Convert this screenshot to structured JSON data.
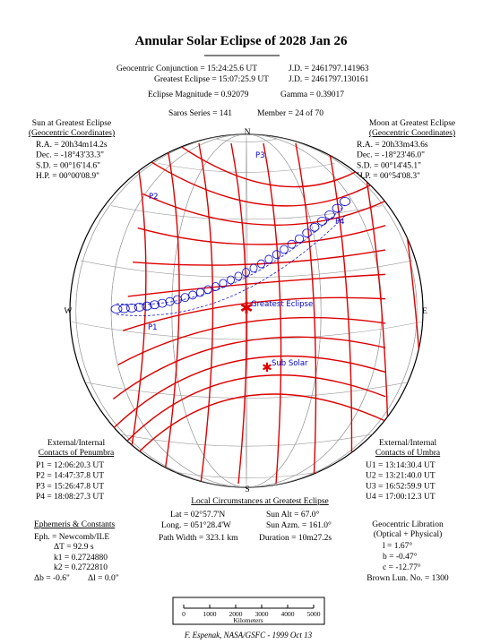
{
  "title": "Annular Solar Eclipse of 2028 Jan 26",
  "header": {
    "conjunction": "Geocentric Conjunction = 15:24:25.6 UT",
    "conjunction_jd": "J.D. = 2461797.141963",
    "greatest": "Greatest Eclipse = 15:07:25.9 UT",
    "greatest_jd": "J.D. = 2461797.130161",
    "magnitude": "Eclipse Magnitude = 0.92079",
    "gamma": "Gamma = 0.39017",
    "saros": "Saros Series = 141",
    "member": "Member = 24 of 70"
  },
  "sun": {
    "title": "Sun at Greatest Eclipse",
    "subtitle": "(Geocentric Coordinates)",
    "lines": [
      "R.A. = 20h34m14.2s",
      "Dec. = -18°43'33.3\"",
      "S.D. = 00°16'14.6\"",
      "H.P. = 00°00'08.9\""
    ]
  },
  "moon": {
    "title": "Moon at Greatest Eclipse",
    "subtitle": "(Geocentric Coordinates)",
    "lines": [
      "R.A. = 20h33m43.6s",
      "Dec. = -18°23'46.0\"",
      "S.D. = 00°14'45.1\"",
      "H.P. = 00°54'08.3\""
    ]
  },
  "map": {
    "north": "N",
    "south": "S",
    "east": "E",
    "west": "W",
    "p1": "P1",
    "p2": "P2",
    "p3": "P3",
    "p4": "P4",
    "greatest": "Greatest Eclipse",
    "sub_solar": "Sub Solar"
  },
  "penumbra": {
    "title": "External/Internal",
    "subtitle": "Contacts of Penumbra",
    "lines": [
      "P1 = 12:06:20.3 UT",
      "P2 = 14:47:37.8 UT",
      "P3 = 15:26:47.8 UT",
      "P4 = 18:08:27.3 UT"
    ]
  },
  "umbra": {
    "title": "External/Internal",
    "subtitle": "Contacts of Umbra",
    "lines": [
      "U1 = 13:14:30.4 UT",
      "U2 = 13:21:40.0 UT",
      "U3 = 16:52:59.9 UT",
      "U4 = 17:00:12.3 UT"
    ]
  },
  "local": {
    "title": "Local Circumstances at Greatest Eclipse",
    "lat": "Lat = 02°57.7'N",
    "sun_alt": "Sun Alt = 67.0°",
    "long": "Long. = 051°28.4'W",
    "sun_azm": "Sun Azm. = 161.0°",
    "path_width": "Path Width = 323.1 km",
    "duration": "Duration = 10m27.2s"
  },
  "ephemeris": {
    "title": "Ephemeris & Constants",
    "eph": "Eph. = Newcomb/ILE",
    "dt": "ΔT = 92.9 s",
    "k1": "k1 = 0.2724880",
    "k2": "k2 = 0.2722810",
    "db": "Δb = -0.6\"",
    "dl": "Δl = 0.0\""
  },
  "libration": {
    "title": "Geocentric Libration",
    "subtitle": "(Optical + Physical)",
    "l": "l = 1.67°",
    "b": "b = -0.47°",
    "c": "c = -12.77°",
    "brown": "Brown Lun. No. = 1300"
  },
  "scale": {
    "ticks": [
      "0",
      "1000",
      "2000",
      "3000",
      "4000",
      "5000"
    ],
    "unit": "Kilometers"
  },
  "footer": "F. Espenak, NASA/GSFC - 1999 Oct 13"
}
